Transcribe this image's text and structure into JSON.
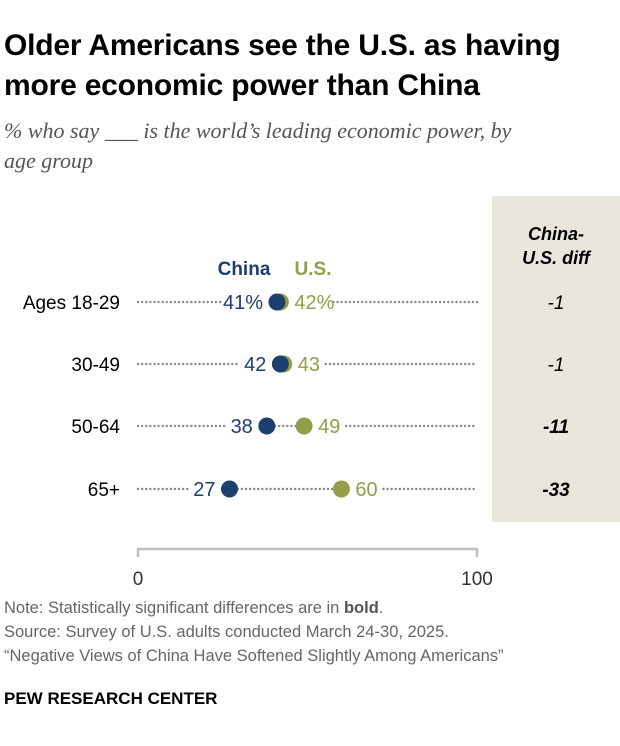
{
  "title_line1": "Older Americans see the U.S. as having",
  "title_line2": "more economic power than China",
  "subtitle_pre": "% who say",
  "subtitle_blank": "___",
  "subtitle_post": "is the world’s leading economic power, by",
  "subtitle_line2": "age group",
  "colors": {
    "china": "#1d3f6e",
    "us": "#949d48",
    "diff_bg": "#e9e6dc",
    "dots": "#8a8a8a"
  },
  "chart_data": {
    "type": "dot_plot",
    "legend": [
      "China",
      "U.S."
    ],
    "diff_header": [
      "China-",
      "U.S. diff"
    ],
    "axis": {
      "min": 0,
      "max": 100,
      "tick_labels": [
        "0",
        "100"
      ]
    },
    "categories": [
      "Ages 18-29",
      "30-49",
      "50-64",
      "65+"
    ],
    "series": [
      {
        "name": "China",
        "values": [
          41,
          42,
          38,
          27
        ],
        "labels": [
          "41%",
          "42",
          "38",
          "27"
        ]
      },
      {
        "name": "U.S.",
        "values": [
          42,
          43,
          49,
          60
        ],
        "labels": [
          "42%",
          "43",
          "49",
          "60"
        ]
      }
    ],
    "diff": {
      "values": [
        "-1",
        "-1",
        "-11",
        "-33"
      ],
      "significant": [
        false,
        false,
        true,
        true
      ]
    }
  },
  "note_prefix": "Note: Statistically significant differences are in",
  "note_bold": "bold",
  "note_suffix": ".",
  "source": "Source: Survey of U.S. adults conducted March 24-30, 2025.",
  "report": "“Negative Views of China Have Softened Slightly Among Americans”",
  "brand": "PEW RESEARCH CENTER"
}
